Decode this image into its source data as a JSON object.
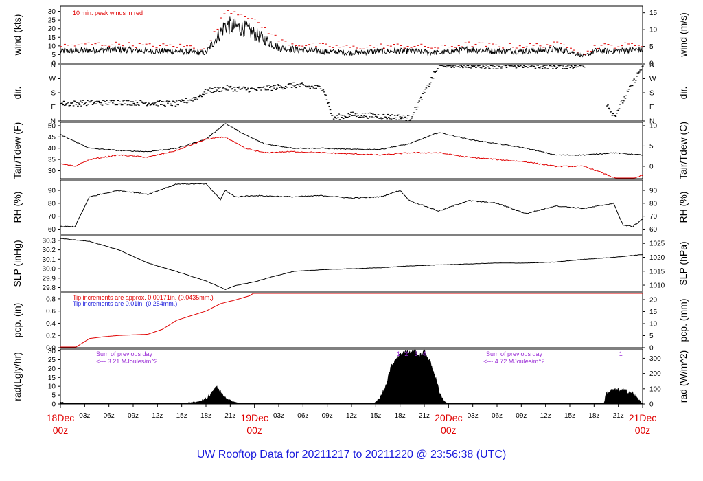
{
  "chart_data": {
    "type": "line",
    "title": "UW Rooftop Data for 20211217  to  20211220 @ 23:56:38  (UTC)",
    "colors": {
      "primary": "#000000",
      "secondary": "#e00000",
      "note_blue": "#1a1adc",
      "note_purple": "#9a2bd6",
      "date_red": "#e00000"
    },
    "x_time_labels": [
      "03z",
      "06z",
      "09z",
      "12z",
      "15z",
      "18z",
      "21z",
      "03z",
      "06z",
      "09z",
      "12z",
      "15z",
      "18z",
      "21z",
      "03z",
      "06z",
      "09z",
      "12z",
      "15z",
      "18z",
      "21z"
    ],
    "x_date_labels": [
      {
        "date": "18Dec",
        "time": "00z"
      },
      {
        "date": "19Dec",
        "time": "00z"
      },
      {
        "date": "20Dec",
        "time": "00z"
      },
      {
        "date": "21Dec",
        "time": "00z"
      }
    ],
    "panels": [
      {
        "id": "wind",
        "ylabel_left": "wind (kts)",
        "ylabel_right": "wind (m/s)",
        "left_ticks": [
          "0",
          "5",
          "10",
          "15",
          "20",
          "25",
          "30"
        ],
        "left_range": [
          0,
          33
        ],
        "right_ticks": [
          "0",
          "5",
          "10",
          "15"
        ],
        "right_values": [
          0,
          5,
          10,
          15
        ],
        "note": "10 min. peak winds in red",
        "series": [
          {
            "color": "black",
            "kind": "noisy",
            "hours": [
              0,
              6,
              12,
              18,
              24,
              30,
              34,
              38,
              42,
              45,
              48,
              54,
              60,
              66,
              72,
              78,
              84,
              90,
              96,
              102,
              105,
              108,
              110,
              113,
              120
            ],
            "values": [
              7,
              7.5,
              8,
              7,
              7,
              6,
              22,
              20,
              14,
              9,
              8,
              7,
              6,
              7,
              7,
              6,
              8,
              7,
              7,
              8,
              7,
              4,
              7,
              7,
              8
            ],
            "amp": 2.5
          },
          {
            "color": "red",
            "kind": "dashed",
            "hours": [
              0,
              6,
              12,
              18,
              24,
              30,
              34,
              38,
              42,
              45,
              48,
              54,
              60,
              66,
              72,
              78,
              84,
              90,
              96,
              102,
              105,
              108,
              110,
              113,
              120
            ],
            "values": [
              10,
              11,
              11,
              10,
              10,
              9,
              31,
              28,
              20,
              13,
              11,
              10,
              9,
              10,
              10,
              9,
              11,
              10,
              10,
              11,
              10,
              5,
              10,
              10,
              11
            ]
          }
        ]
      },
      {
        "id": "dir",
        "ylabel_left": "dir.",
        "ylabel_right": "dir.",
        "left_ticks": [
          "N",
          "E",
          "S",
          "W",
          "N"
        ],
        "left_range": [
          0,
          360
        ],
        "right_ticks": [
          "N",
          "E",
          "S",
          "W",
          "N"
        ],
        "right_values": [
          0,
          90,
          180,
          270,
          360
        ],
        "series": [
          {
            "color": "black",
            "kind": "scatter",
            "hours": [
              0,
              6,
              12,
              18,
              24,
              28,
              30,
              34,
              40,
              48,
              52,
              54,
              56,
              60,
              66,
              72,
              78,
              84,
              90,
              96,
              102,
              108,
              114,
              120
            ],
            "values": [
              110,
              115,
              120,
              115,
              110,
              150,
              190,
              210,
              200,
              230,
              215,
              210,
              20,
              40,
              30,
              20,
              360,
              355,
              350,
              355,
              350,
              355,
              30,
              360
            ],
            "amp": 18
          }
        ]
      },
      {
        "id": "temp",
        "ylabel_left": "Tair/Tdew (F)",
        "ylabel_right": "Tair/Tdew (C)",
        "left_ticks": [
          "30",
          "35",
          "40",
          "45",
          "50"
        ],
        "left_range": [
          26.5,
          51.5
        ],
        "right_ticks": [
          "0",
          "5",
          "10"
        ],
        "right_values": [
          0,
          5,
          10
        ],
        "series": [
          {
            "color": "black",
            "kind": "line",
            "hours": [
              0,
              6,
              12,
              18,
              24,
              30,
              34,
              38,
              42,
              48,
              54,
              60,
              66,
              72,
              78,
              84,
              90,
              96,
              102,
              108,
              114,
              120
            ],
            "values": [
              46,
              40,
              39,
              38.5,
              40,
              44,
              51,
              46,
              42,
              40,
              40,
              39.5,
              39.5,
              42,
              47,
              44,
              42,
              40,
              37,
              37,
              38,
              37
            ],
            "amp": 0.4
          },
          {
            "color": "red",
            "kind": "line",
            "hours": [
              0,
              3,
              6,
              12,
              18,
              24,
              30,
              34,
              38,
              42,
              48,
              54,
              60,
              66,
              72,
              78,
              84,
              90,
              96,
              102,
              108,
              113,
              116,
              120
            ],
            "values": [
              33,
              32,
              35,
              37,
              36,
              39,
              44,
              45,
              40,
              38,
              38.5,
              38,
              37.5,
              37,
              38,
              38,
              36,
              35,
              34,
              32,
              32,
              28,
              25,
              28
            ],
            "amp": 0.5
          }
        ]
      },
      {
        "id": "rh",
        "ylabel_left": "RH (%)",
        "ylabel_right": "RH (%)",
        "left_ticks": [
          "60",
          "70",
          "80",
          "90"
        ],
        "left_range": [
          56,
          98
        ],
        "right_ticks": [
          "60",
          "70",
          "80",
          "90"
        ],
        "right_values": [
          60,
          70,
          80,
          90
        ],
        "series": [
          {
            "color": "black",
            "kind": "line",
            "hours": [
              0,
              3,
              6,
              12,
              18,
              24,
              30,
              33,
              34,
              36,
              40,
              48,
              54,
              60,
              66,
              70,
              72,
              78,
              84,
              90,
              96,
              102,
              108,
              114,
              116,
              118,
              120
            ],
            "values": [
              62,
              62,
              85,
              90,
              87,
              95,
              95,
              83,
              90,
              85,
              86,
              85,
              86,
              84,
              85,
              90,
              82,
              74,
              82,
              80,
              72,
              78,
              76,
              80,
              63,
              62,
              68
            ],
            "amp": 0.8
          }
        ]
      },
      {
        "id": "slp",
        "ylabel_left": "SLP (inHg)",
        "ylabel_right": "SLP (hPa)",
        "left_ticks": [
          "29.8",
          "29.9",
          "30.0",
          "30.1",
          "30.2",
          "30.3"
        ],
        "left_range": [
          29.76,
          30.35
        ],
        "right_ticks": [
          "1010",
          "1015",
          "1020",
          "1025"
        ],
        "right_values": [
          1010,
          1015,
          1020,
          1025
        ],
        "series": [
          {
            "color": "black",
            "kind": "line",
            "hours": [
              0,
              6,
              12,
              18,
              24,
              30,
              34,
              36,
              40,
              44,
              48,
              54,
              60,
              66,
              72,
              78,
              84,
              90,
              96,
              102,
              108,
              114,
              120
            ],
            "values": [
              30.32,
              30.29,
              30.2,
              30.06,
              29.97,
              29.87,
              29.78,
              29.82,
              29.86,
              29.92,
              29.97,
              29.99,
              30.0,
              30.01,
              30.03,
              30.04,
              30.05,
              30.06,
              30.06,
              30.07,
              30.1,
              30.12,
              30.15
            ],
            "amp": 0.004
          }
        ]
      },
      {
        "id": "pcp",
        "ylabel_left": "pcp. (in)",
        "ylabel_right": "pcp. (mm)",
        "left_ticks": [
          "0.0",
          "0.2",
          "0.4",
          "0.6",
          "0.8"
        ],
        "left_range": [
          0,
          0.9
        ],
        "right_ticks": [
          "0",
          "5",
          "10",
          "15",
          "20"
        ],
        "right_values": [
          0,
          5,
          10,
          15,
          20
        ],
        "note_red": "Tip increments are approx. 0.00171in. (0.0435mm.)",
        "note_blue": "Tip increments are 0.01in. (0.254mm.)",
        "series": [
          {
            "color": "red",
            "kind": "line",
            "hours": [
              0,
              3,
              6,
              9,
              12,
              18,
              21,
              24,
              30,
              33,
              36,
              39,
              40,
              120
            ],
            "values": [
              0,
              0,
              0.15,
              0.18,
              0.2,
              0.22,
              0.3,
              0.45,
              0.6,
              0.72,
              0.78,
              0.85,
              0.9,
              0.9
            ],
            "amp": 0
          }
        ]
      },
      {
        "id": "rad",
        "ylabel_left": "rad(Lgly/hr)",
        "ylabel_right": "rad (W/m^2)",
        "left_ticks": [
          "0",
          "5",
          "10",
          "15",
          "20",
          "25",
          "30"
        ],
        "left_range": [
          0,
          31
        ],
        "right_ticks": [
          "0",
          "100",
          "200",
          "300"
        ],
        "right_values": [
          0,
          100,
          200,
          300
        ],
        "note_day1_a": "Sum of previous day",
        "note_day1_b": "<--- 3.21 MJoules/m^2",
        "note_day2_a": "Sum of previous day",
        "note_day2_b": "<--- 4.72 MJoules/m^2",
        "markers": [
          {
            "text": "1",
            "hour": 69.7
          },
          {
            "text": "2",
            "hour": 71.3
          },
          {
            "text": "3",
            "hour": 73.3
          },
          {
            "text": "4",
            "hour": 75.0
          },
          {
            "text": "1",
            "hour": 115.5
          }
        ],
        "series": [
          {
            "color": "black",
            "kind": "fill",
            "hours": [
              0,
              0.5,
              1,
              25,
              26,
              27,
              28,
              29,
              30,
              31,
              32,
              33,
              34,
              35,
              36,
              37,
              38,
              39,
              40,
              64,
              65,
              66,
              67,
              68,
              69,
              70,
              71,
              72,
              73,
              74,
              75,
              76,
              77,
              78,
              79,
              80,
              112,
              112.5,
              113,
              114,
              116,
              118,
              119,
              120
            ],
            "values": [
              1,
              1,
              0,
              0,
              0.5,
              1,
              1,
              2,
              3,
              6,
              10,
              7,
              4,
              2,
              1,
              0.5,
              0.5,
              0,
              0,
              0,
              1,
              4,
              10,
              20,
              25,
              28,
              30,
              29,
              31,
              27,
              30,
              25,
              18,
              8,
              2,
              0,
              0,
              6,
              7,
              8,
              8,
              6,
              3,
              0
            ],
            "amp": 1.2
          }
        ]
      }
    ]
  }
}
